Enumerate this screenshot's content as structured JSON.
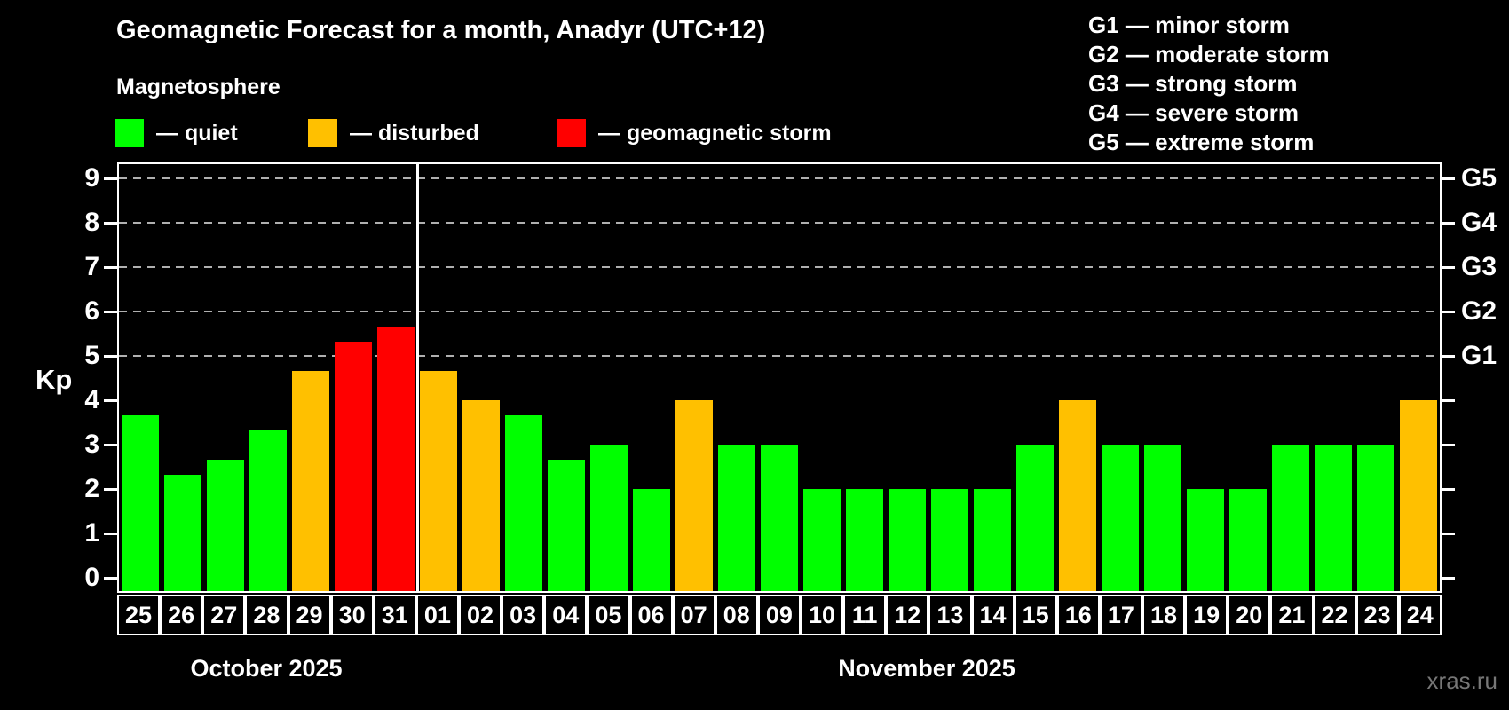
{
  "title": "Geomagnetic Forecast for a month, Anadyr (UTC+12)",
  "legend": {
    "heading": "Magnetosphere",
    "items": [
      {
        "label": "— quiet",
        "status": "quiet"
      },
      {
        "label": "— disturbed",
        "status": "disturbed"
      },
      {
        "label": "— geomagnetic storm",
        "status": "storm"
      }
    ]
  },
  "g_legend": [
    "G1 — minor storm",
    "G2 — moderate storm",
    "G3 — strong storm",
    "G4 — severe storm",
    "G5 — extreme storm"
  ],
  "axis": {
    "kp_label": "Kp",
    "y_ticks": [
      0,
      1,
      2,
      3,
      4,
      5,
      6,
      7,
      8,
      9
    ],
    "g_scale": [
      {
        "label": "G1",
        "kp": 5
      },
      {
        "label": "G2",
        "kp": 6
      },
      {
        "label": "G3",
        "kp": 7
      },
      {
        "label": "G4",
        "kp": 8
      },
      {
        "label": "G5",
        "kp": 9
      }
    ]
  },
  "colors": {
    "quiet": "#00ff00",
    "disturbed": "#ffc000",
    "storm": "#ff0000",
    "grid": "#b0b0b0",
    "background": "#000000",
    "text": "#ffffff",
    "watermark": "#777777"
  },
  "chart_data": {
    "type": "bar",
    "title": "Geomagnetic Forecast for a month, Anadyr (UTC+12)",
    "xlabel": "",
    "ylabel": "Kp",
    "ylim": [
      -0.35,
      9.35
    ],
    "grid_levels": [
      5,
      6,
      7,
      8,
      9
    ],
    "legend_position": "top",
    "months": [
      {
        "label": "October 2025",
        "days": 7
      },
      {
        "label": "November 2025",
        "days": 24
      }
    ],
    "bars": [
      {
        "day": "25",
        "kp": 3.67,
        "status": "quiet"
      },
      {
        "day": "26",
        "kp": 2.33,
        "status": "quiet"
      },
      {
        "day": "27",
        "kp": 2.67,
        "status": "quiet"
      },
      {
        "day": "28",
        "kp": 3.33,
        "status": "quiet"
      },
      {
        "day": "29",
        "kp": 4.67,
        "status": "disturbed"
      },
      {
        "day": "30",
        "kp": 5.33,
        "status": "storm"
      },
      {
        "day": "31",
        "kp": 5.67,
        "status": "storm"
      },
      {
        "day": "01",
        "kp": 4.67,
        "status": "disturbed"
      },
      {
        "day": "02",
        "kp": 4,
        "status": "disturbed"
      },
      {
        "day": "03",
        "kp": 3.67,
        "status": "quiet"
      },
      {
        "day": "04",
        "kp": 2.67,
        "status": "quiet"
      },
      {
        "day": "05",
        "kp": 3,
        "status": "quiet"
      },
      {
        "day": "06",
        "kp": 2,
        "status": "quiet"
      },
      {
        "day": "07",
        "kp": 4,
        "status": "disturbed"
      },
      {
        "day": "08",
        "kp": 3,
        "status": "quiet"
      },
      {
        "day": "09",
        "kp": 3,
        "status": "quiet"
      },
      {
        "day": "10",
        "kp": 2,
        "status": "quiet"
      },
      {
        "day": "11",
        "kp": 2,
        "status": "quiet"
      },
      {
        "day": "12",
        "kp": 2,
        "status": "quiet"
      },
      {
        "day": "13",
        "kp": 2,
        "status": "quiet"
      },
      {
        "day": "14",
        "kp": 2,
        "status": "quiet"
      },
      {
        "day": "15",
        "kp": 3,
        "status": "quiet"
      },
      {
        "day": "16",
        "kp": 4,
        "status": "disturbed"
      },
      {
        "day": "17",
        "kp": 3,
        "status": "quiet"
      },
      {
        "day": "18",
        "kp": 3,
        "status": "quiet"
      },
      {
        "day": "19",
        "kp": 2,
        "status": "quiet"
      },
      {
        "day": "20",
        "kp": 2,
        "status": "quiet"
      },
      {
        "day": "21",
        "kp": 3,
        "status": "quiet"
      },
      {
        "day": "22",
        "kp": 3,
        "status": "quiet"
      },
      {
        "day": "23",
        "kp": 3,
        "status": "quiet"
      },
      {
        "day": "24",
        "kp": 4,
        "status": "disturbed"
      }
    ]
  },
  "watermark": "xras.ru"
}
